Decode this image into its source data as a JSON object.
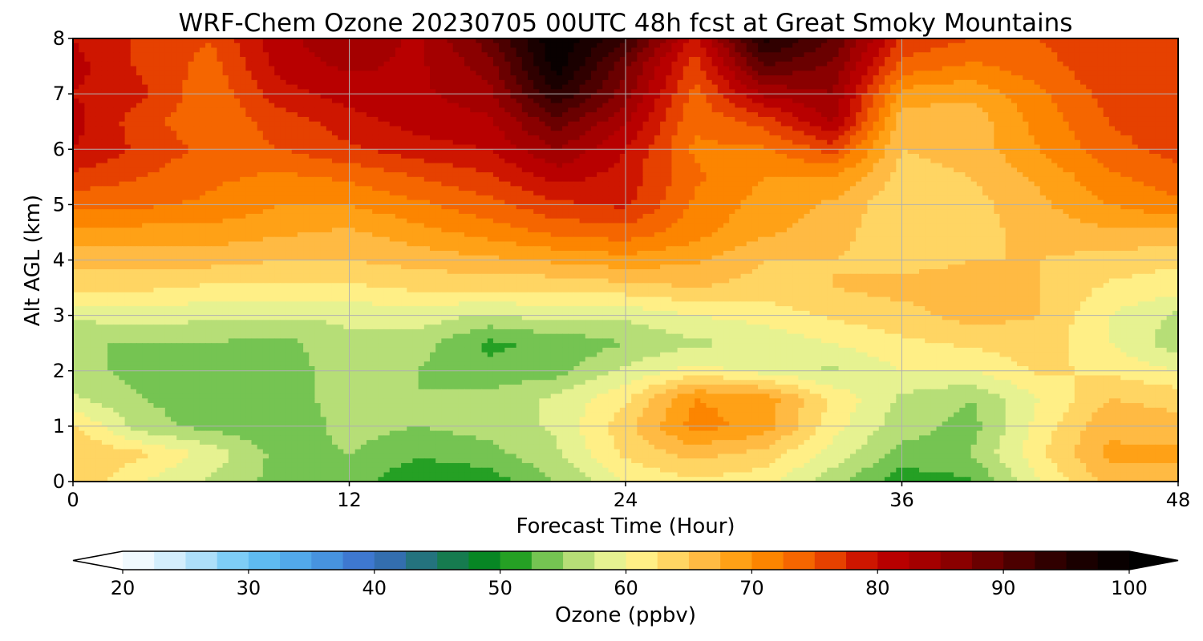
{
  "chart_data": {
    "type": "heatmap",
    "title": "WRF-Chem Ozone  20230705 00UTC 48h fcst at Great Smoky Mountains",
    "xlabel": "Forecast Time (Hour)",
    "ylabel": "Alt AGL (km)",
    "xlim": [
      0,
      48
    ],
    "ylim": [
      0,
      8
    ],
    "xticks": [
      0,
      12,
      24,
      36,
      48
    ],
    "xtick_labels": [
      "0",
      "12",
      "24",
      "36",
      "48"
    ],
    "yticks": [
      0,
      1,
      2,
      3,
      4,
      5,
      6,
      7,
      8
    ],
    "ytick_labels": [
      "0",
      "1",
      "2",
      "3",
      "4",
      "5",
      "6",
      "7",
      "8"
    ],
    "grid": true,
    "x": [
      0,
      3,
      6,
      9,
      12,
      15,
      18,
      21,
      24,
      27,
      30,
      33,
      36,
      39,
      42,
      45,
      48
    ],
    "y": [
      0,
      0.5,
      1,
      1.5,
      2,
      2.5,
      3,
      3.5,
      4,
      4.5,
      5,
      5.5,
      6,
      6.5,
      7,
      7.5,
      8
    ],
    "z": [
      [
        65,
        60,
        57,
        54,
        54,
        50,
        51,
        55,
        60,
        62,
        61,
        56,
        51,
        52,
        60,
        66,
        66
      ],
      [
        65,
        63,
        59,
        54,
        55,
        53,
        54,
        57,
        63,
        66,
        64,
        59,
        54,
        55,
        62,
        68,
        68
      ],
      [
        63,
        56,
        54,
        53,
        56,
        55,
        56,
        58,
        64,
        71,
        69,
        61,
        56,
        54,
        61,
        67,
        66
      ],
      [
        58,
        55,
        54,
        54,
        56,
        55,
        56,
        58,
        62,
        70,
        69,
        62,
        57,
        55,
        60,
        65,
        64
      ],
      [
        56,
        54,
        54,
        54,
        56,
        55,
        53,
        54,
        58,
        61,
        59,
        57,
        60,
        60,
        63,
        62,
        60
      ],
      [
        55,
        55,
        55,
        54,
        57,
        56,
        52,
        53,
        55,
        57,
        58,
        60,
        62,
        63,
        64,
        60,
        56
      ],
      [
        58,
        59,
        58,
        58,
        58,
        59,
        57,
        59,
        58,
        60,
        61,
        63,
        64,
        66,
        65,
        60,
        57
      ],
      [
        63,
        63,
        62,
        62,
        62,
        63,
        63,
        63,
        64,
        65,
        64,
        65,
        66,
        66,
        65,
        62,
        61
      ],
      [
        66,
        66,
        66,
        65,
        65,
        66,
        67,
        68,
        69,
        68,
        65,
        65,
        64,
        65,
        65,
        64,
        63
      ],
      [
        69,
        69,
        69,
        68,
        67,
        69,
        71,
        73,
        74,
        71,
        68,
        66,
        63,
        64,
        66,
        67,
        67
      ],
      [
        73,
        73,
        72,
        70,
        70,
        72,
        74,
        77,
        78,
        72,
        69,
        67,
        63,
        64,
        67,
        70,
        72
      ],
      [
        77,
        75,
        73,
        72,
        73,
        75,
        77,
        81,
        79,
        73,
        70,
        70,
        64,
        65,
        68,
        72,
        74
      ],
      [
        80,
        77,
        74,
        75,
        77,
        79,
        80,
        85,
        80,
        72,
        72,
        76,
        65,
        66,
        70,
        74,
        76
      ],
      [
        81,
        76,
        73,
        76,
        79,
        81,
        82,
        89,
        83,
        73,
        76,
        83,
        66,
        66,
        71,
        75,
        77
      ],
      [
        80,
        78,
        73,
        79,
        81,
        82,
        84,
        95,
        86,
        74,
        83,
        85,
        69,
        68,
        72,
        76,
        77
      ],
      [
        81,
        77,
        74,
        81,
        83,
        82,
        86,
        99,
        88,
        76,
        90,
        87,
        74,
        72,
        74,
        77,
        77
      ],
      [
        80,
        77,
        75,
        82,
        84,
        82,
        89,
        100,
        93,
        79,
        96,
        90,
        77,
        75,
        75,
        77,
        77
      ]
    ],
    "colorbar": {
      "label": "Ozone  (ppbv)",
      "min": 20,
      "max": 100,
      "step": 2.5,
      "extend": "both",
      "ticks": [
        20,
        30,
        40,
        50,
        60,
        70,
        80,
        90,
        100
      ],
      "tick_labels": [
        "20",
        "30",
        "40",
        "50",
        "60",
        "70",
        "80",
        "90",
        "100"
      ],
      "color_stops": [
        {
          "value": 20,
          "color": "#ffffff"
        },
        {
          "value": 25,
          "color": "#c4e8fb"
        },
        {
          "value": 30,
          "color": "#66c4f4"
        },
        {
          "value": 35,
          "color": "#4ba0e6"
        },
        {
          "value": 40,
          "color": "#3a6bc8"
        },
        {
          "value": 45,
          "color": "#1d7565"
        },
        {
          "value": 50,
          "color": "#008c0e"
        },
        {
          "value": 52.5,
          "color": "#4ab43a"
        },
        {
          "value": 55,
          "color": "#9fd36a"
        },
        {
          "value": 57.5,
          "color": "#cce883"
        },
        {
          "value": 60,
          "color": "#fffb9f"
        },
        {
          "value": 62.5,
          "color": "#ffe26d"
        },
        {
          "value": 65,
          "color": "#ffc759"
        },
        {
          "value": 70,
          "color": "#ff9400"
        },
        {
          "value": 75,
          "color": "#f25700"
        },
        {
          "value": 80,
          "color": "#c20000"
        },
        {
          "value": 85,
          "color": "#9a0000"
        },
        {
          "value": 90,
          "color": "#5a0000"
        },
        {
          "value": 95,
          "color": "#220000"
        },
        {
          "value": 100,
          "color": "#000000"
        }
      ]
    }
  }
}
